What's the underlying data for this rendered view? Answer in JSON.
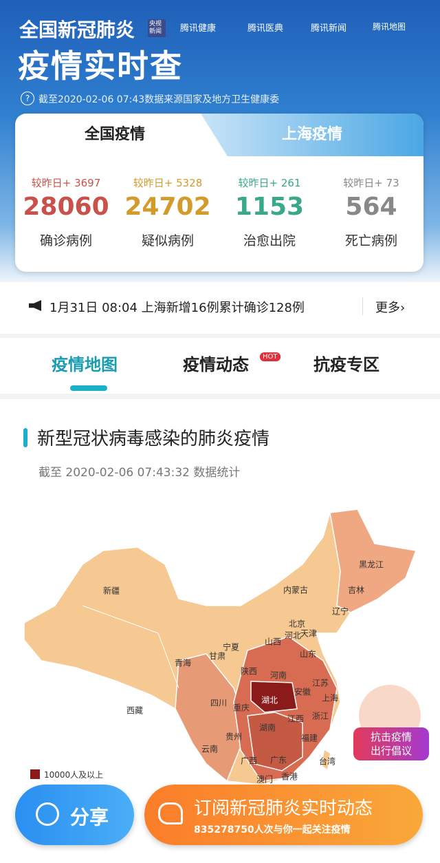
{
  "header": {
    "title": "全国新冠肺炎",
    "badges": [
      "央视新闻",
      "腾讯健康",
      "腾讯医典",
      "腾讯新闻",
      "腾讯地图"
    ],
    "subtitle": "疫情实时查",
    "update": "截至2020-02-06 07:43数据来源国家及地方卫生健康委"
  },
  "tabs": [
    "全国疫情",
    "上海疫情"
  ],
  "stats": [
    {
      "delta": "较昨日+ 3697",
      "value": 28060,
      "label": "确诊病例"
    },
    {
      "delta": "较昨日+ 5328",
      "value": 24702,
      "label": "疑似病例"
    },
    {
      "delta": "较昨日+ 261",
      "value": 1153,
      "label": "治愈出院"
    },
    {
      "delta": "较昨日+ 73",
      "value": 564,
      "label": "死亡病例"
    }
  ],
  "news": {
    "text": "1月31日 08:04 上海新增16例累计确诊128例",
    "more": "更多"
  },
  "nav": {
    "items": [
      "疫情地图",
      "疫情动态",
      "抗疫专区"
    ],
    "hot": "HOT"
  },
  "section": {
    "title": "新型冠状病毒感染的肺炎疫情",
    "subtitle": "截至 2020-02-06 07:43:32 数据统计"
  },
  "map": {
    "provinces": [
      "黑龙江",
      "新疆",
      "内蒙古",
      "吉林",
      "辽宁",
      "北京",
      "河北",
      "天津",
      "山西",
      "宁夏",
      "甘肃",
      "青海",
      "山东",
      "陕西",
      "河南",
      "江苏",
      "安徽",
      "西藏",
      "四川",
      "重庆",
      "湖北",
      "上海",
      "浙江",
      "江西",
      "湖南",
      "贵州",
      "云南",
      "福建",
      "广西",
      "广东",
      "台湾",
      "香港",
      "澳门"
    ],
    "legend": "10000人及以上"
  },
  "float": [
    "抗击疫情",
    "出行倡议"
  ],
  "footer": {
    "share": "分享",
    "subscribe": "订阅新冠肺炎实时动态",
    "followers": "835278750人次与你一起关注疫情"
  }
}
